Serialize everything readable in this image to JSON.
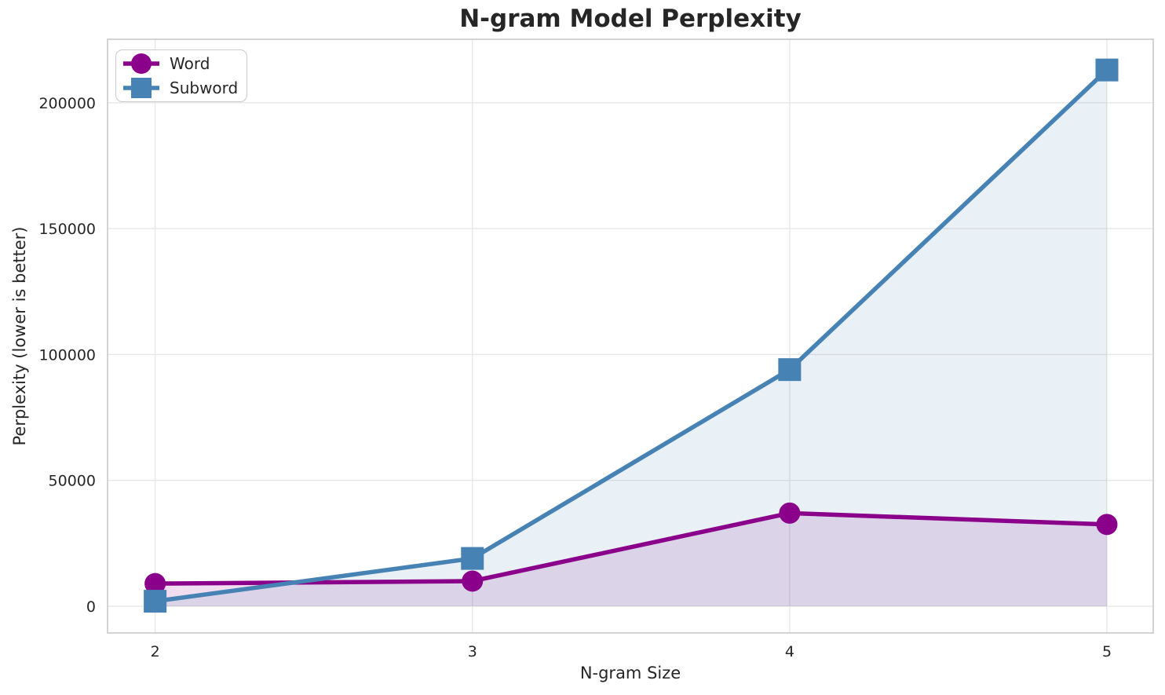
{
  "chart_data": {
    "type": "line",
    "title": "N-gram Model Perplexity",
    "xlabel": "N-gram Size",
    "ylabel": "Perplexity (lower is better)",
    "x": [
      2,
      3,
      4,
      5
    ],
    "series": [
      {
        "name": "Word",
        "color": "#8B008B",
        "marker": "circle",
        "values": [
          9000,
          10000,
          37000,
          32500
        ],
        "fill_alpha": 0.13
      },
      {
        "name": "Subword",
        "color": "#4682B4",
        "marker": "square",
        "values": [
          2000,
          19000,
          94000,
          213000
        ],
        "fill_alpha": 0.12
      }
    ],
    "fill_to": 0,
    "xlim": [
      1.85,
      5.146
    ],
    "ylim": [
      -10600,
      225200
    ],
    "xticks": [
      2,
      3,
      4,
      5
    ],
    "xtick_labels": [
      "2",
      "3",
      "4",
      "5"
    ],
    "yticks": [
      0,
      50000,
      100000,
      150000,
      200000
    ],
    "ytick_labels": [
      "0",
      "50000",
      "100000",
      "150000",
      "200000"
    ],
    "grid": true,
    "legend_position": "upper left"
  },
  "colors": {
    "figure_background": "#ffffff",
    "grid": "#e7e7e7",
    "spine": "#c9c9c9",
    "text": "#262626",
    "legend_border": "#cbcbcb"
  }
}
